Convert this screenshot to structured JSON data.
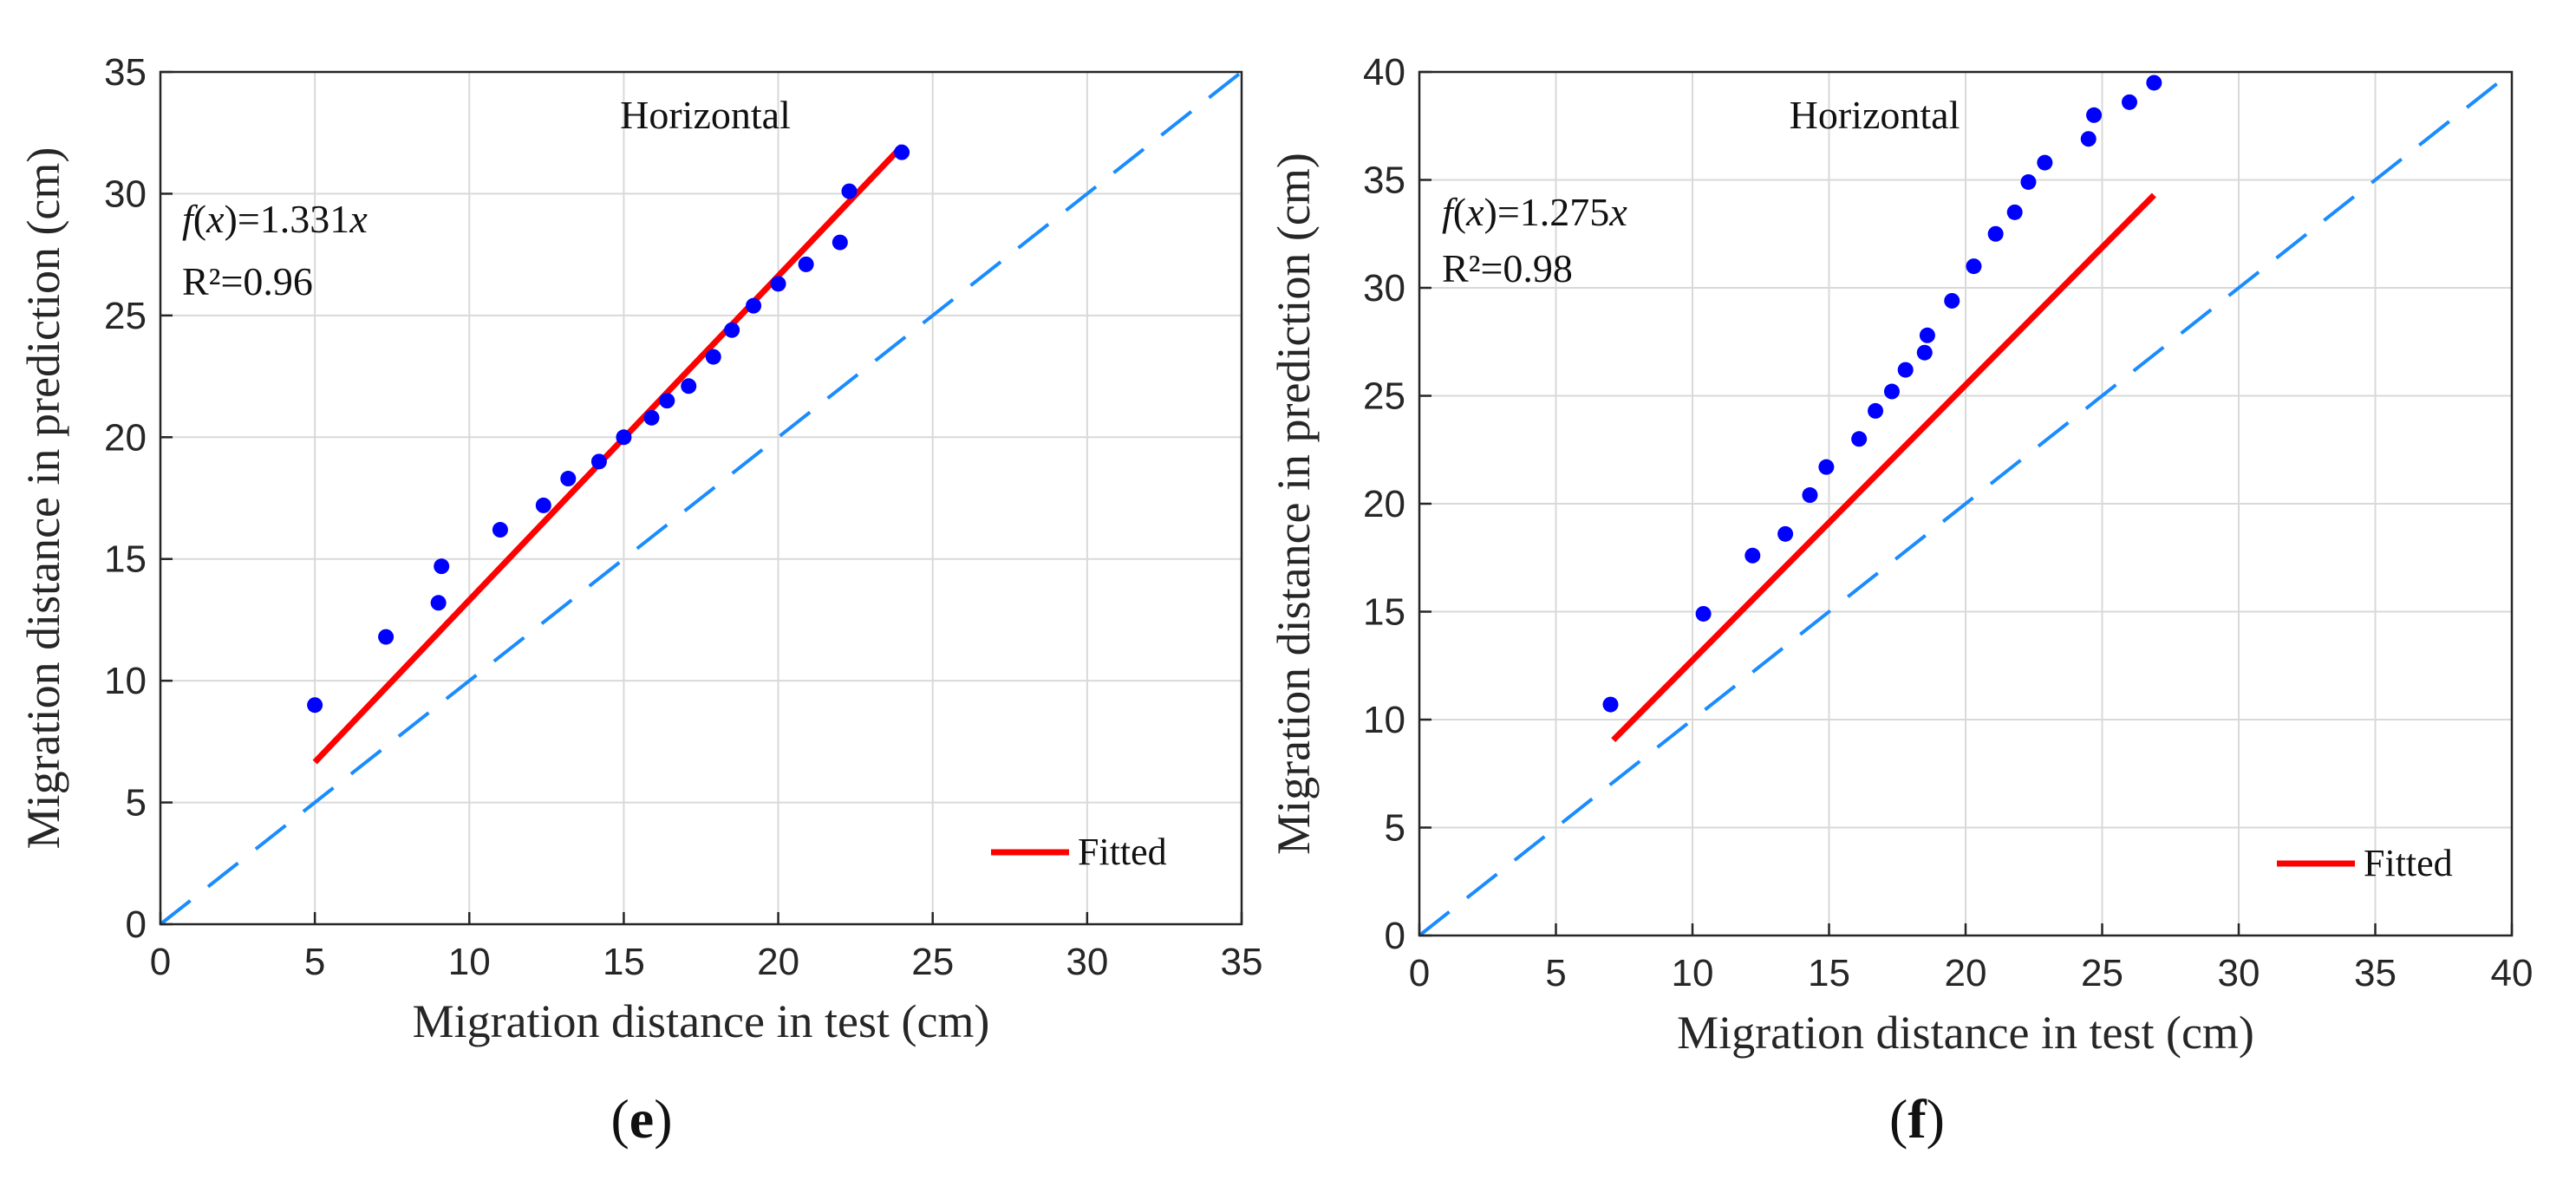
{
  "chart_data": [
    {
      "type": "scatter",
      "panel_label": "e",
      "title": "Horizontal",
      "xlabel": "Migration distance in test (cm)",
      "ylabel": "Migration distance in prediction (cm)",
      "xlim": [
        0,
        35
      ],
      "ylim": [
        0,
        35
      ],
      "xticks": [
        0,
        5,
        10,
        15,
        20,
        25,
        30,
        35
      ],
      "yticks": [
        0,
        5,
        10,
        15,
        20,
        25,
        30,
        35
      ],
      "grid": true,
      "annotation_f": "f",
      "annotation_x": "x",
      "annotation_eq": "=1.331",
      "annotation_r2": "R²=0.96",
      "slope": 1.331,
      "r2": 0.96,
      "fit_range": [
        5.0,
        24.0
      ],
      "legend": {
        "label": "Fitted",
        "position": "bottom-right"
      },
      "points": [
        [
          5.0,
          9.0
        ],
        [
          7.3,
          11.8
        ],
        [
          9.0,
          13.2
        ],
        [
          9.1,
          14.7
        ],
        [
          11.0,
          16.2
        ],
        [
          12.4,
          17.2
        ],
        [
          13.2,
          18.3
        ],
        [
          14.2,
          19.0
        ],
        [
          15.0,
          20.0
        ],
        [
          15.9,
          20.8
        ],
        [
          16.4,
          21.5
        ],
        [
          17.1,
          22.1
        ],
        [
          17.9,
          23.3
        ],
        [
          18.5,
          24.4
        ],
        [
          19.2,
          25.4
        ],
        [
          20.0,
          26.3
        ],
        [
          20.9,
          27.1
        ],
        [
          22.0,
          28.0
        ],
        [
          22.3,
          30.1
        ],
        [
          24.0,
          31.7
        ]
      ]
    },
    {
      "type": "scatter",
      "panel_label": "f",
      "title": "Horizontal",
      "xlabel": "Migration distance in test (cm)",
      "ylabel": "Migration distance in prediction (cm)",
      "xlim": [
        0,
        40
      ],
      "ylim": [
        0,
        40
      ],
      "xticks": [
        0,
        5,
        10,
        15,
        20,
        25,
        30,
        35,
        40
      ],
      "yticks": [
        0,
        5,
        10,
        15,
        20,
        25,
        30,
        35,
        40
      ],
      "grid": true,
      "annotation_f": "f",
      "annotation_x": "x",
      "annotation_eq": "=1.275",
      "annotation_r2": "R²=0.98",
      "slope": 1.275,
      "r2": 0.98,
      "fit_range": [
        7.1,
        26.9
      ],
      "legend": {
        "label": "Fitted",
        "position": "bottom-right"
      },
      "points": [
        [
          7.0,
          10.7
        ],
        [
          10.4,
          14.9
        ],
        [
          12.2,
          17.6
        ],
        [
          13.4,
          18.6
        ],
        [
          14.3,
          20.4
        ],
        [
          14.9,
          21.7
        ],
        [
          16.1,
          23.0
        ],
        [
          16.7,
          24.3
        ],
        [
          17.3,
          25.2
        ],
        [
          17.8,
          26.2
        ],
        [
          18.5,
          27.0
        ],
        [
          18.6,
          27.8
        ],
        [
          19.5,
          29.4
        ],
        [
          20.3,
          31.0
        ],
        [
          21.1,
          32.5
        ],
        [
          21.8,
          33.5
        ],
        [
          22.3,
          34.9
        ],
        [
          22.9,
          35.8
        ],
        [
          24.5,
          36.9
        ],
        [
          24.7,
          38.0
        ],
        [
          26.0,
          38.6
        ],
        [
          26.9,
          39.5
        ]
      ]
    }
  ]
}
